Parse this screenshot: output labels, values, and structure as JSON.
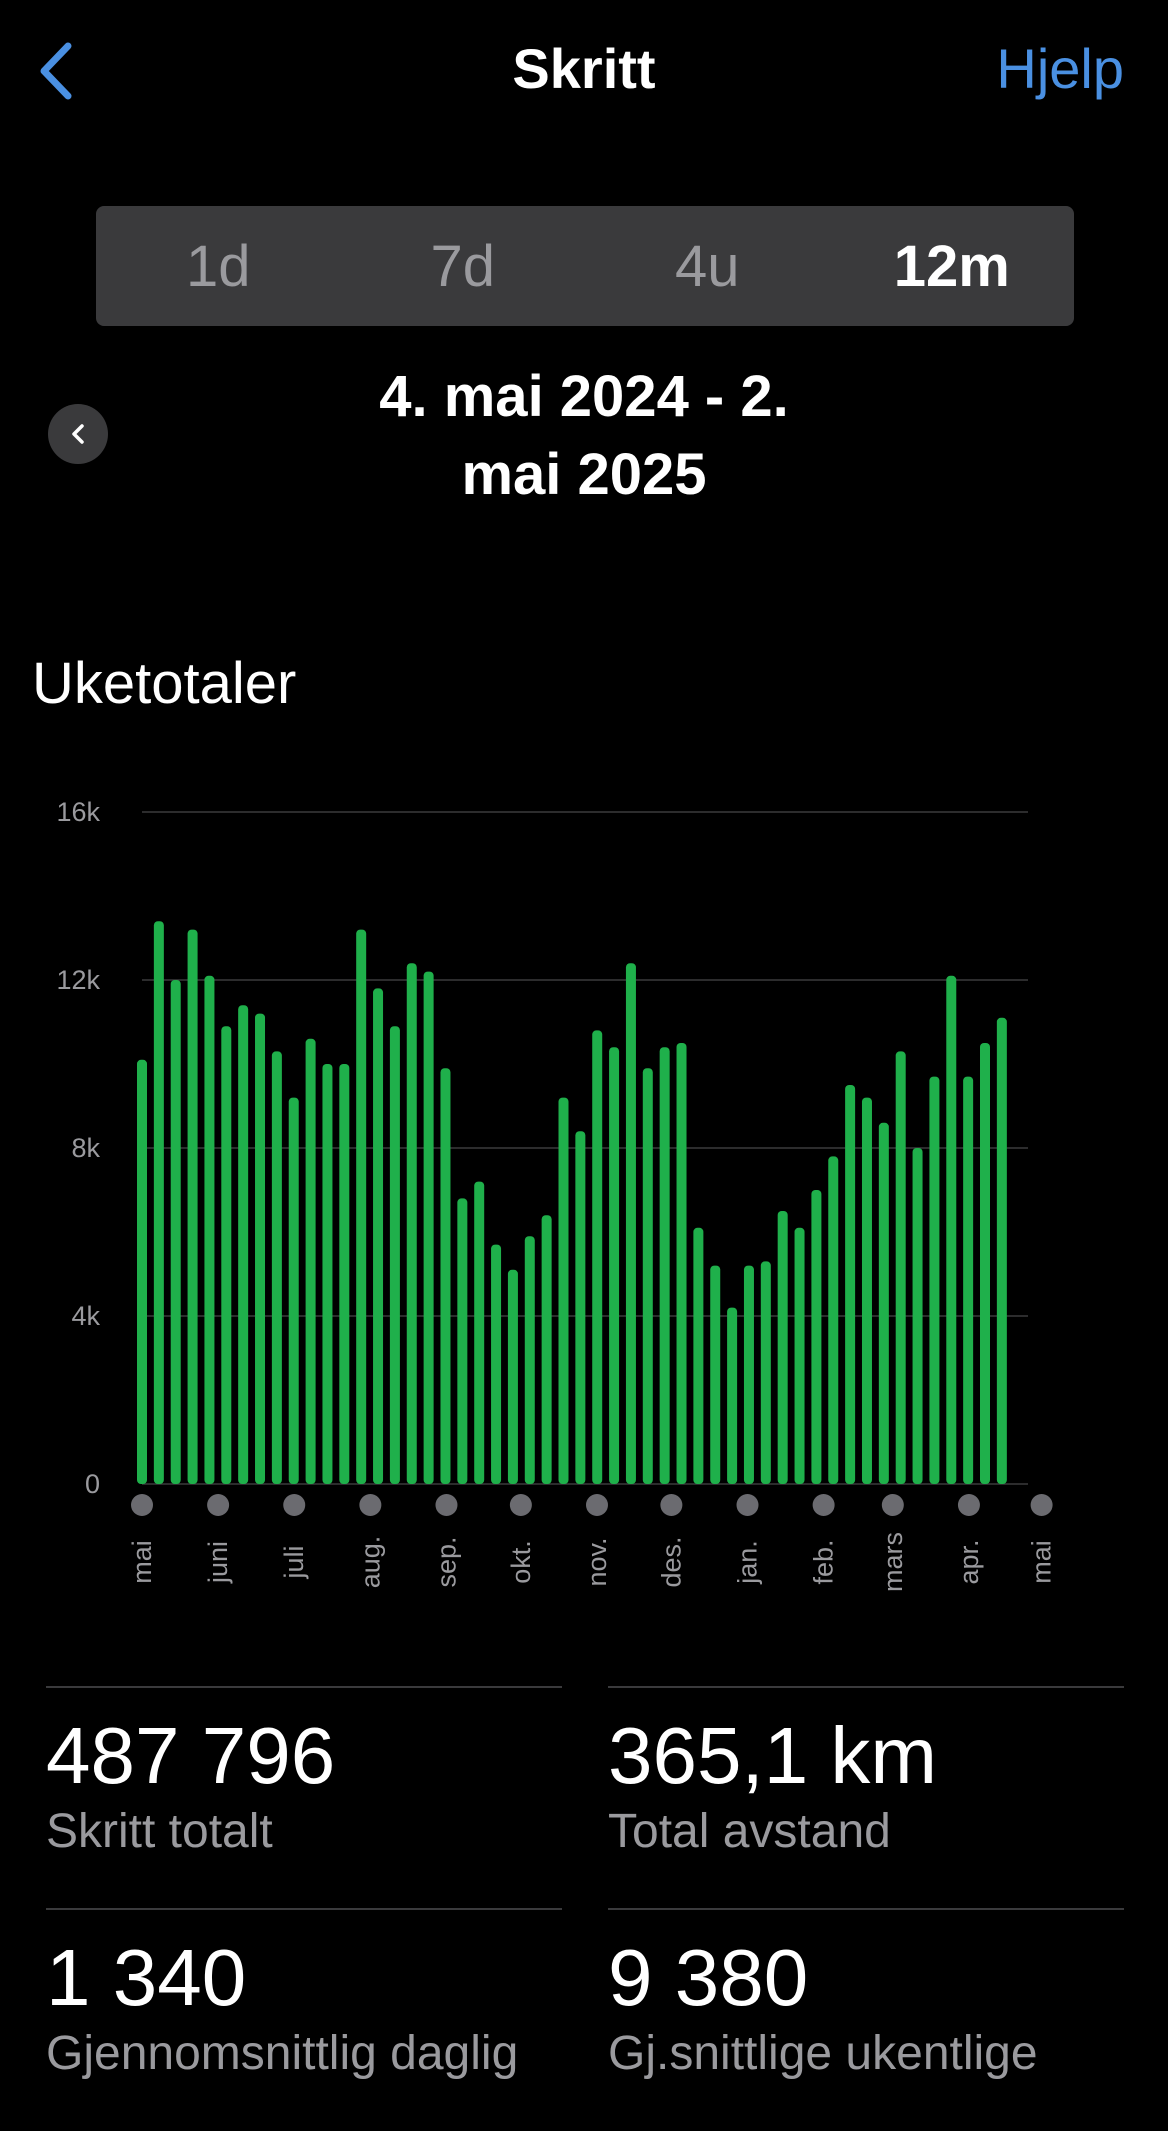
{
  "header": {
    "title": "Skritt",
    "help_label": "Hjelp"
  },
  "periods": [
    "1d",
    "7d",
    "4u",
    "12m"
  ],
  "selected_period": "12m",
  "date_range": {
    "line1": "4. mai 2024 - 2.",
    "line2": "mai 2025"
  },
  "section_title": "Uketotaler",
  "colors": {
    "accent": "#4a90e2",
    "bar": "#1fb04b",
    "grid": "#3a3a3c"
  },
  "chart_data": {
    "type": "bar",
    "title": "Uketotaler",
    "ylim": [
      0,
      16000
    ],
    "yticks": [
      {
        "value": 0,
        "label": "0"
      },
      {
        "value": 4000,
        "label": "4k"
      },
      {
        "value": 8000,
        "label": "8k"
      },
      {
        "value": 12000,
        "label": "12k"
      },
      {
        "value": 16000,
        "label": "16k"
      }
    ],
    "grid": true,
    "values": [
      10100,
      13400,
      12000,
      13200,
      12100,
      10900,
      11400,
      11200,
      10300,
      9200,
      10600,
      10000,
      10000,
      13200,
      11800,
      10900,
      12400,
      12200,
      9900,
      6800,
      7200,
      5700,
      5100,
      5900,
      6400,
      9200,
      8400,
      10800,
      10400,
      12400,
      9900,
      10400,
      10500,
      6100,
      5200,
      4200,
      5200,
      5300,
      6500,
      6100,
      7000,
      7800,
      9500,
      9200,
      8600,
      10300,
      8000,
      9700,
      12100,
      9700,
      10500,
      11100
    ],
    "month_ticks": [
      {
        "label": "mai",
        "week": 0
      },
      {
        "label": "juni",
        "week": 4.4
      },
      {
        "label": "juli",
        "week": 8.8
      },
      {
        "label": "aug.",
        "week": 13.2
      },
      {
        "label": "sep.",
        "week": 17.6
      },
      {
        "label": "okt.",
        "week": 21.9
      },
      {
        "label": "nov.",
        "week": 26.3
      },
      {
        "label": "des.",
        "week": 30.6
      },
      {
        "label": "jan.",
        "week": 35
      },
      {
        "label": "feb.",
        "week": 39.4
      },
      {
        "label": "mars",
        "week": 43.4
      },
      {
        "label": "apr.",
        "week": 47.8
      },
      {
        "label": "mai",
        "week": 52
      }
    ]
  },
  "stats": [
    {
      "value": "487 796",
      "label": "Skritt totalt"
    },
    {
      "value": "365,1 km",
      "label": "Total avstand"
    },
    {
      "value": "1 340",
      "label": "Gjennomsnittlig daglig"
    },
    {
      "value": "9 380",
      "label": "Gj.snittlige ukentlige"
    }
  ]
}
